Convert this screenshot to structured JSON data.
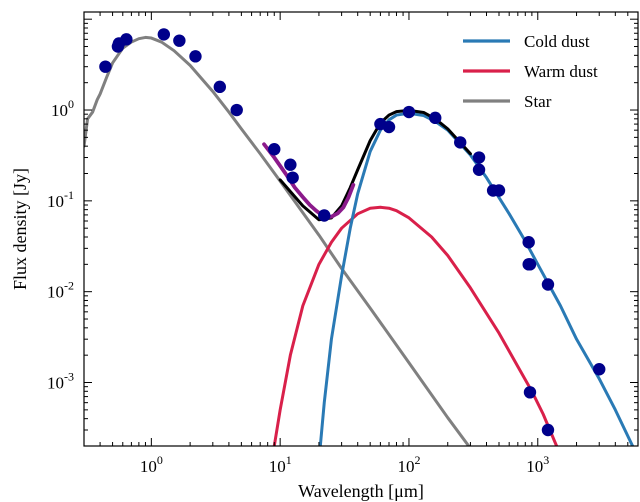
{
  "chart_data": {
    "type": "line",
    "title": "",
    "xlabel": "Wavelength [μm]",
    "ylabel": "Flux density [Jy]",
    "x_scale": "log",
    "y_scale": "log",
    "xlim": [
      0.3,
      6000
    ],
    "ylim": [
      0.0002,
      12
    ],
    "grid": false,
    "legend_position": "top-right",
    "x_ticks": [
      {
        "value": 1,
        "base": "10",
        "exp": "0"
      },
      {
        "value": 10,
        "base": "10",
        "exp": "1"
      },
      {
        "value": 100,
        "base": "10",
        "exp": "2"
      },
      {
        "value": 1000,
        "base": "10",
        "exp": "3"
      }
    ],
    "y_ticks": [
      {
        "value": 0.001,
        "base": "10",
        "exp": "-3"
      },
      {
        "value": 0.01,
        "base": "10",
        "exp": "-2"
      },
      {
        "value": 0.1,
        "base": "10",
        "exp": "-1"
      },
      {
        "value": 1,
        "base": "10",
        "exp": "0"
      }
    ],
    "series": [
      {
        "name": "Cold dust",
        "color": "#2a7ab5",
        "legend": true,
        "x": [
          20.5,
          22,
          25,
          30,
          35,
          40,
          50,
          60,
          70,
          80,
          100,
          130,
          160,
          200,
          300,
          400,
          600,
          800,
          1000,
          1500,
          2000,
          3000,
          4000,
          6000
        ],
        "y": [
          0.0002,
          0.0006,
          0.003,
          0.015,
          0.05,
          0.12,
          0.35,
          0.6,
          0.78,
          0.88,
          0.92,
          0.87,
          0.75,
          0.6,
          0.32,
          0.18,
          0.072,
          0.036,
          0.02,
          0.007,
          0.003,
          0.0011,
          0.0005,
          0.00015
        ]
      },
      {
        "name": "Warm dust",
        "color": "#d9204a",
        "legend": true,
        "x": [
          9,
          10,
          12,
          15,
          20,
          25,
          30,
          40,
          50,
          60,
          70,
          80,
          100,
          150,
          200,
          300,
          500,
          700,
          900,
          1100,
          1400
        ],
        "y": [
          0.0002,
          0.0005,
          0.002,
          0.007,
          0.02,
          0.035,
          0.05,
          0.072,
          0.083,
          0.085,
          0.083,
          0.078,
          0.065,
          0.04,
          0.025,
          0.011,
          0.0035,
          0.0015,
          0.0008,
          0.00045,
          0.0002
        ]
      },
      {
        "name": "Star",
        "color": "#808080",
        "legend": true,
        "x": [
          0.3,
          0.32,
          0.35,
          0.38,
          0.4,
          0.45,
          0.5,
          0.6,
          0.7,
          0.8,
          0.9,
          1.0,
          1.2,
          1.5,
          2,
          3,
          4,
          5,
          7,
          10,
          20,
          30,
          50,
          100,
          200,
          380
        ],
        "y": [
          0.4,
          0.8,
          0.95,
          1.3,
          1.5,
          2.3,
          3.3,
          4.8,
          5.6,
          6.1,
          6.3,
          6.2,
          5.6,
          4.5,
          3.1,
          1.6,
          0.95,
          0.62,
          0.33,
          0.165,
          0.042,
          0.018,
          0.0066,
          0.00165,
          0.00041,
          0.00012
        ]
      },
      {
        "name": "Total model",
        "color": "#000000",
        "legend": false,
        "x": [
          10,
          15,
          20,
          25,
          30,
          35,
          40,
          50,
          60,
          70,
          80,
          100,
          130,
          160,
          200,
          300
        ],
        "y": [
          0.17,
          0.088,
          0.062,
          0.065,
          0.088,
          0.14,
          0.22,
          0.46,
          0.72,
          0.88,
          0.96,
          0.99,
          0.94,
          0.8,
          0.62,
          0.33
        ]
      },
      {
        "name": "IRS spectrum",
        "color": "#8b1a8b",
        "legend": false,
        "x": [
          7.5,
          9,
          11,
          13,
          15,
          17,
          19,
          21,
          23,
          25,
          28,
          31,
          34,
          37
        ],
        "y": [
          0.42,
          0.3,
          0.2,
          0.14,
          0.11,
          0.09,
          0.078,
          0.07,
          0.066,
          0.067,
          0.073,
          0.085,
          0.11,
          0.15
        ]
      }
    ],
    "points": {
      "name": "Photometry",
      "color": "#00008b",
      "x": [
        0.44,
        0.55,
        0.56,
        0.64,
        1.25,
        1.65,
        2.2,
        3.4,
        4.6,
        9,
        12,
        12.5,
        22,
        60,
        70,
        100,
        160,
        250,
        350,
        350,
        450,
        500,
        850,
        850,
        870,
        1200,
        3000,
        870,
        1200
      ],
      "y": [
        3.0,
        5.0,
        5.4,
        6.0,
        6.8,
        5.8,
        3.9,
        1.8,
        1.0,
        0.37,
        0.25,
        0.18,
        0.069,
        0.7,
        0.65,
        0.95,
        0.82,
        0.44,
        0.3,
        0.22,
        0.13,
        0.13,
        0.035,
        0.02,
        0.02,
        0.012,
        0.0014,
        0.00078,
        0.0003
      ]
    }
  }
}
